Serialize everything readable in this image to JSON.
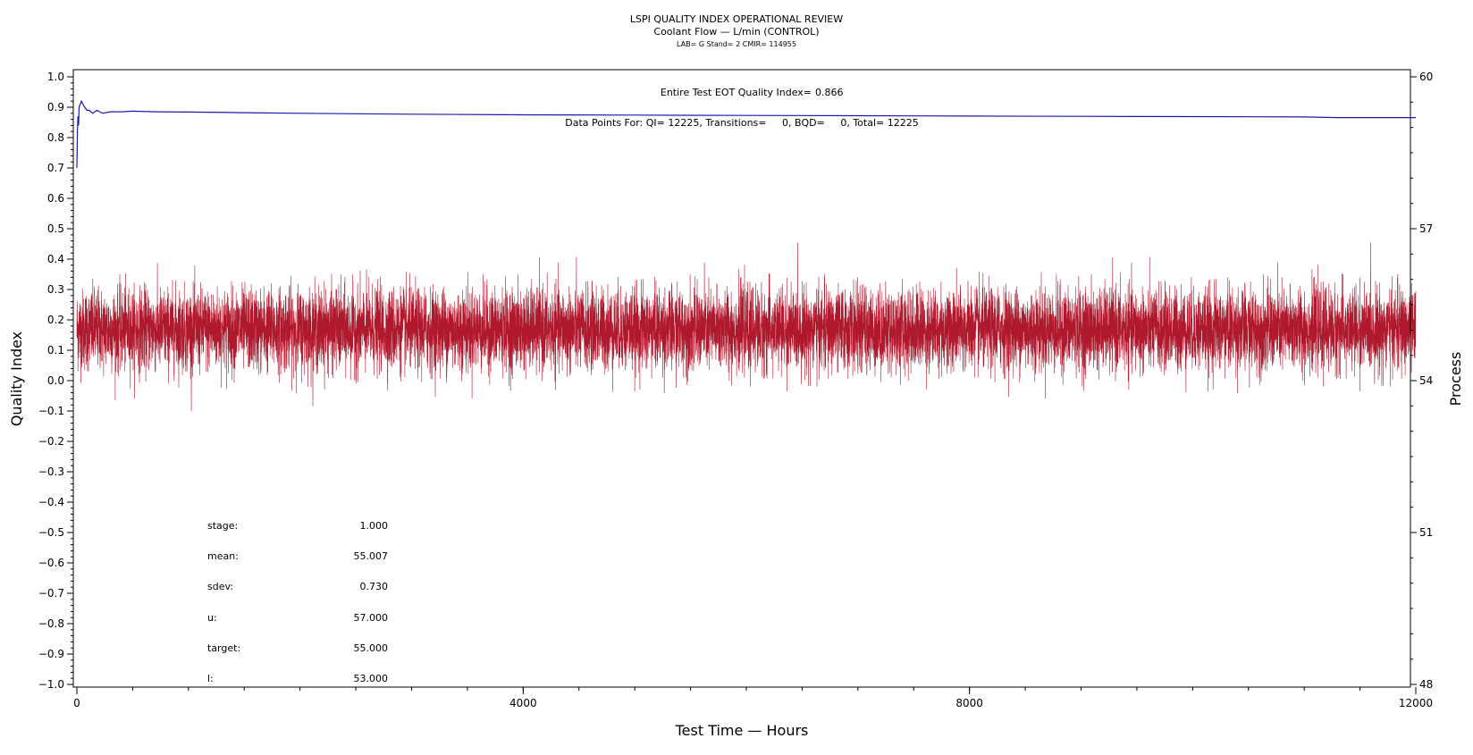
{
  "chart_data": {
    "type": "line",
    "title": "LSPI QUALITY INDEX OPERATIONAL REVIEW",
    "subtitle": "Coolant Flow — L/min (CONTROL)",
    "subtitle2": "LAB= G Stand= 2 CMIR= 114955",
    "xlabel": "Test Time — Hours",
    "ylabel": "Quality Index",
    "y2label": "Process",
    "xlim": [
      0,
      12000
    ],
    "ylim": [
      -1.0,
      1.0
    ],
    "y2lim": [
      48,
      60
    ],
    "x_ticks": [
      "0",
      "4000",
      "8000",
      "12000"
    ],
    "x_tick_values": [
      0,
      4000,
      8000,
      12000
    ],
    "y_ticks": [
      "1.0",
      "0.9",
      "0.8",
      "0.7",
      "0.6",
      "0.5",
      "0.4",
      "0.3",
      "0.2",
      "0.1",
      "0.0",
      "−0.1",
      "−0.2",
      "−0.3",
      "−0.4",
      "−0.5",
      "−0.6",
      "−0.7",
      "−0.8",
      "−0.9",
      "−1.0"
    ],
    "y_tick_values": [
      1.0,
      0.9,
      0.8,
      0.7,
      0.6,
      0.5,
      0.4,
      0.3,
      0.2,
      0.1,
      0.0,
      -0.1,
      -0.2,
      -0.3,
      -0.4,
      -0.5,
      -0.6,
      -0.7,
      -0.8,
      -0.9,
      -1.0
    ],
    "y2_ticks": [
      "60",
      "57",
      "54",
      "51",
      "48"
    ],
    "y2_tick_values": [
      60,
      57,
      54,
      51,
      48
    ],
    "annotations": {
      "qi_label": "Entire Test EOT Quality Index=",
      "qi_value": "0.866",
      "points_text": "Data Points For: QI= 12225, Transitions=     0, BQD=     0, Total= 12225"
    },
    "stats": [
      {
        "label": "stage:",
        "value": "1.000"
      },
      {
        "label": "mean:",
        "value": "55.007"
      },
      {
        "label": "sdev:",
        "value": "0.730"
      },
      {
        "label": "u:",
        "value": "57.000"
      },
      {
        "label": "target:",
        "value": "55.000"
      },
      {
        "label": "l:",
        "value": "53.000"
      }
    ],
    "series": [
      {
        "axis": "left",
        "color": "#1a1aaa",
        "x": [
          0,
          5,
          10,
          15,
          20,
          30,
          40,
          55,
          70,
          90,
          110,
          140,
          180,
          230,
          300,
          400,
          500,
          700,
          1000,
          1500,
          2000,
          3000,
          4000,
          5000,
          6000,
          7000,
          8000,
          9000,
          10000,
          11000,
          11300,
          11600,
          12000
        ],
        "y": [
          0.7,
          0.82,
          0.87,
          0.84,
          0.9,
          0.91,
          0.92,
          0.91,
          0.9,
          0.89,
          0.89,
          0.88,
          0.89,
          0.88,
          0.885,
          0.885,
          0.887,
          0.885,
          0.884,
          0.882,
          0.88,
          0.877,
          0.875,
          0.874,
          0.873,
          0.872,
          0.871,
          0.87,
          0.869,
          0.868,
          0.866,
          0.866,
          0.866
        ]
      },
      {
        "axis": "right",
        "color": "#b0182d",
        "points": 12225,
        "center": 55.007,
        "sdev": 0.73,
        "min": 52.5,
        "max": 57.3
      }
    ]
  }
}
